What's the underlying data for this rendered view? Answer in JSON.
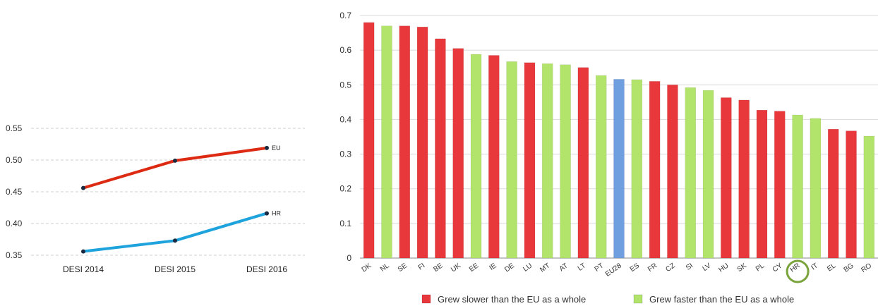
{
  "chart_data": [
    {
      "type": "line",
      "categories": [
        "DESI 2014",
        "DESI 2015",
        "DESI 2016"
      ],
      "series": [
        {
          "name": "EU",
          "values": [
            0.456,
            0.499,
            0.519
          ],
          "color": "#dd2a12"
        },
        {
          "name": "HR",
          "values": [
            0.356,
            0.373,
            0.416
          ],
          "color": "#1ea3dc"
        }
      ],
      "yticks": [
        "0.35",
        "0.40",
        "0.45",
        "0.50",
        "0.55"
      ],
      "ylim": [
        0.35,
        0.55
      ],
      "grid": true,
      "title": "",
      "xlabel": "",
      "ylabel": ""
    },
    {
      "type": "bar",
      "categories": [
        "DK",
        "NL",
        "SE",
        "FI",
        "BE",
        "UK",
        "EE",
        "IE",
        "DE",
        "LU",
        "MT",
        "AT",
        "LT",
        "PT",
        "EU28",
        "ES",
        "FR",
        "CZ",
        "SI",
        "LV",
        "HU",
        "SK",
        "PL",
        "CY",
        "HR",
        "IT",
        "EL",
        "BG",
        "RO"
      ],
      "values": [
        0.68,
        0.67,
        0.67,
        0.667,
        0.633,
        0.605,
        0.588,
        0.585,
        0.567,
        0.564,
        0.561,
        0.558,
        0.55,
        0.527,
        0.516,
        0.515,
        0.51,
        0.5,
        0.492,
        0.484,
        0.463,
        0.456,
        0.427,
        0.424,
        0.413,
        0.403,
        0.372,
        0.367,
        0.352
      ],
      "groups": [
        "slower",
        "faster",
        "slower",
        "slower",
        "slower",
        "slower",
        "faster",
        "slower",
        "faster",
        "slower",
        "faster",
        "faster",
        "slower",
        "faster",
        "eu",
        "faster",
        "slower",
        "slower",
        "faster",
        "faster",
        "slower",
        "slower",
        "slower",
        "slower",
        "faster",
        "faster",
        "slower",
        "slower",
        "faster"
      ],
      "colors": {
        "slower": "#e8383b",
        "faster": "#b2e36a",
        "eu": "#6f9fde"
      },
      "highlight": "HR",
      "highlight_color": "#7aa33c",
      "yticks": [
        "0",
        "0.1",
        "0.2",
        "0.3",
        "0.4",
        "0.5",
        "0.6",
        "0.7"
      ],
      "ylim": [
        0,
        0.7
      ],
      "grid": true,
      "legend": [
        {
          "label": "Grew slower than the EU as a whole",
          "group": "slower"
        },
        {
          "label": "Grew faster than the EU as a whole",
          "group": "faster"
        }
      ],
      "legend_position": "bottom",
      "title": "",
      "xlabel": "",
      "ylabel": ""
    }
  ]
}
